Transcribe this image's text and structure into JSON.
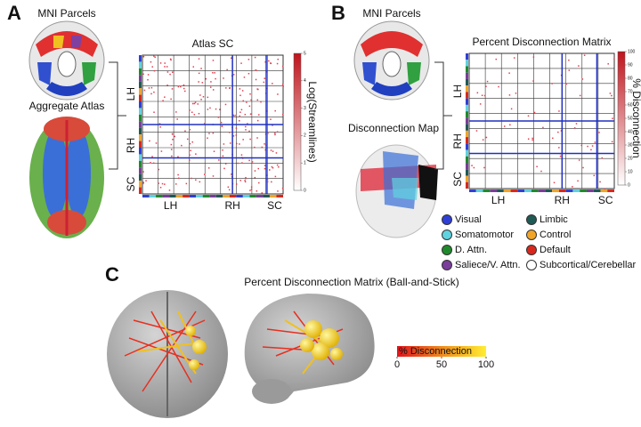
{
  "panels": [
    {
      "letter": "A",
      "top_label": "MNI Parcels",
      "bottom_label": "Aggregate Atlas",
      "matrix_title": "Atlas SC",
      "row_labels": [
        "LH",
        "RH",
        "SC"
      ],
      "col_labels": [
        "LH",
        "RH",
        "SC"
      ],
      "colorbar_label": "Log(Streamlines)",
      "colorbar_ticks": [
        0,
        1,
        2,
        3,
        4,
        5
      ]
    },
    {
      "letter": "B",
      "top_label": "MNI Parcels",
      "bottom_label": "Disconnection Map",
      "matrix_title": "Percent Disconnection Matrix",
      "row_labels": [
        "LH",
        "RH",
        "SC"
      ],
      "col_labels": [
        "LH",
        "RH",
        "SC"
      ],
      "colorbar_label": "% Disconnection",
      "colorbar_ticks": [
        0,
        10,
        20,
        30,
        40,
        50,
        60,
        70,
        80,
        90,
        100
      ]
    },
    {
      "letter": "C",
      "title": "Percent Disconnection Matrix (Ball-and-Stick)",
      "colorbar_label": "% Disconnection",
      "colorbar_ticks": [
        0,
        50,
        100
      ]
    }
  ],
  "legend": [
    {
      "name": "Visual",
      "color": "#2f3fd6"
    },
    {
      "name": "Somatomotor",
      "color": "#5fd3e0"
    },
    {
      "name": "D. Attn.",
      "color": "#1f8a2c"
    },
    {
      "name": "Saliece/V. Attn.",
      "color": "#7a3d9a"
    },
    {
      "name": "Limbic",
      "color": "#1f5a55"
    },
    {
      "name": "Control",
      "color": "#f0a52a"
    },
    {
      "name": "Default",
      "color": "#d8281e"
    },
    {
      "name": "Subcortical/Cerebellar",
      "color": "#ffffff"
    }
  ]
}
